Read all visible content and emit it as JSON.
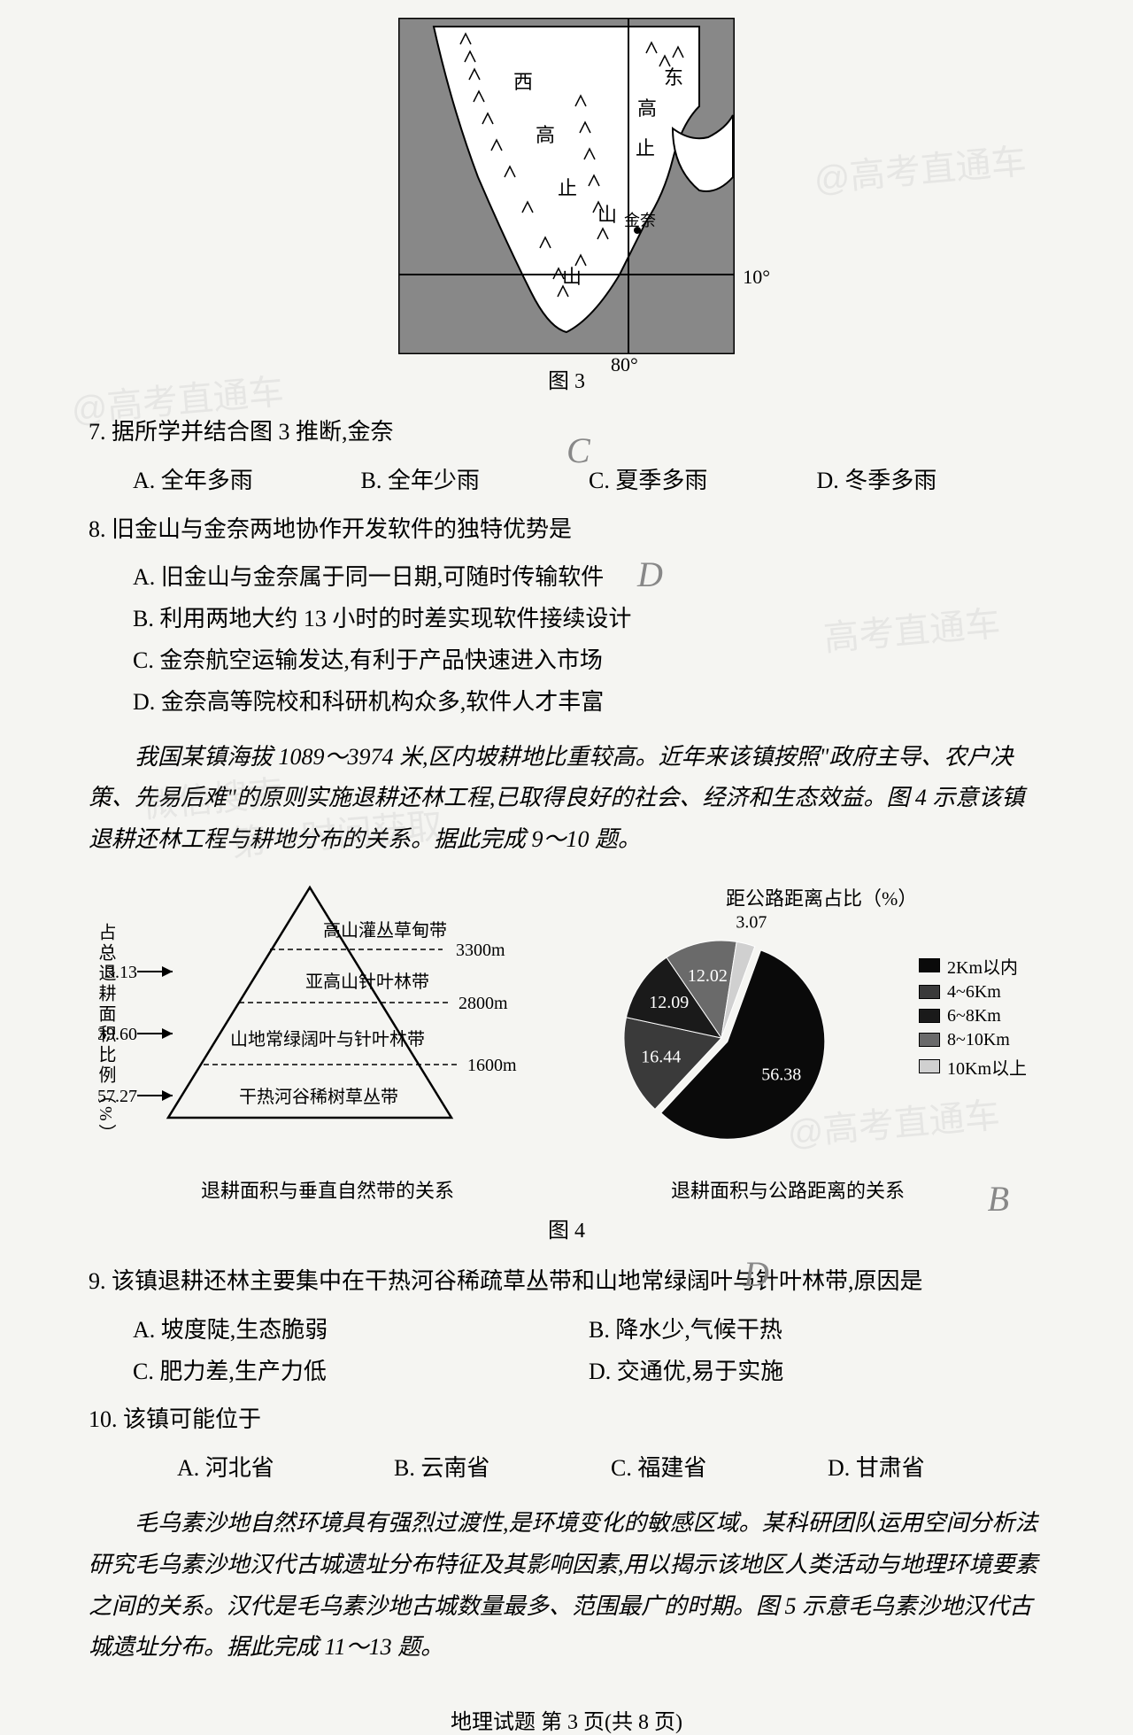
{
  "map": {
    "labels": {
      "west": "西",
      "east": "东",
      "gao": "高",
      "zhi": "止",
      "shan": "山",
      "jinai": "金奈"
    },
    "lat_label": "10°",
    "lon_label": "80°",
    "land_color": "#ffffff",
    "sea_color": "#888888",
    "border_color": "#000000"
  },
  "fig3_label": "图 3",
  "q7": {
    "stem": "7. 据所学并结合图 3 推断,金奈",
    "opts": {
      "A": "A. 全年多雨",
      "B": "B. 全年少雨",
      "C": "C. 夏季多雨",
      "D": "D. 冬季多雨"
    }
  },
  "q8": {
    "stem": "8. 旧金山与金奈两地协作开发软件的独特优势是",
    "opts": {
      "A": "A. 旧金山与金奈属于同一日期,可随时传输软件",
      "B": "B. 利用两地大约 13 小时的时差实现软件接续设计",
      "C": "C. 金奈航空运输发达,有利于产品快速进入市场",
      "D": "D. 金奈高等院校和科研机构众多,软件人才丰富"
    }
  },
  "passage1": "我国某镇海拔 1089～3974 米,区内坡耕地比重较高。近年来该镇按照\"政府主导、农户决策、先易后难\"的原则实施退耕还林工程,已取得良好的社会、经济和生态效益。图 4 示意该镇退耕还林工程与耕地分布的关系。据此完成 9～10 题。",
  "triangle_chart": {
    "y_label": "占总退耕面积比例（%）",
    "zones": [
      {
        "label": "高山灌丛草甸带",
        "elev": "3300m",
        "pct": "3.13"
      },
      {
        "label": "亚高山针叶林带",
        "elev": "2800m",
        "pct": "39.60"
      },
      {
        "label": "山地常绿阔叶与针叶林带",
        "elev": "1600m",
        "pct": ""
      },
      {
        "label": "干热河谷稀树草丛带",
        "elev": "",
        "pct": "57.27"
      }
    ],
    "caption": "退耕面积与垂直自然带的关系"
  },
  "pie_chart": {
    "title": "距公路距离占比（%）",
    "slices": [
      {
        "label": "2Km以内",
        "value": 56.38,
        "color": "#0a0a0a",
        "text_show": "56.38"
      },
      {
        "label": "4~6Km",
        "value": 16.44,
        "color": "#3a3a3a",
        "text_show": "16.44"
      },
      {
        "label": "6~8Km",
        "value": 12.09,
        "color": "#1a1a1a",
        "text_show": "12.09"
      },
      {
        "label": "8~10Km",
        "value": 12.02,
        "color": "#6a6a6a",
        "text_show": "12.02"
      },
      {
        "label": "10Km以上",
        "value": 3.07,
        "color": "#d0d0d0",
        "text_show": "3.07"
      }
    ],
    "caption": "退耕面积与公路距离的关系"
  },
  "fig4_label": "图 4",
  "q9": {
    "stem": "9. 该镇退耕还林主要集中在干热河谷稀疏草丛带和山地常绿阔叶与针叶林带,原因是",
    "opts": {
      "A": "A. 坡度陡,生态脆弱",
      "B": "B. 降水少,气候干热",
      "C": "C. 肥力差,生产力低",
      "D": "D. 交通优,易于实施"
    }
  },
  "q10": {
    "stem": "10. 该镇可能位于",
    "opts": {
      "A": "A. 河北省",
      "B": "B. 云南省",
      "C": "C. 福建省",
      "D": "D. 甘肃省"
    }
  },
  "passage2": "毛乌素沙地自然环境具有强烈过渡性,是环境变化的敏感区域。某科研团队运用空间分析法研究毛乌素沙地汉代古城遗址分布特征及其影响因素,用以揭示该地区人类活动与地理环境要素之间的关系。汉代是毛乌素沙地古城数量最多、范围最广的时期。图 5 示意毛乌素沙地汉代古城遗址分布。据此完成 11～13 题。",
  "footer": "地理试题 第 3 页(共 8 页)",
  "watermarks": [
    "@高考直通车",
    "@高考直通车",
    "微信搜索",
    "第一时间获取",
    "高考直通车"
  ]
}
